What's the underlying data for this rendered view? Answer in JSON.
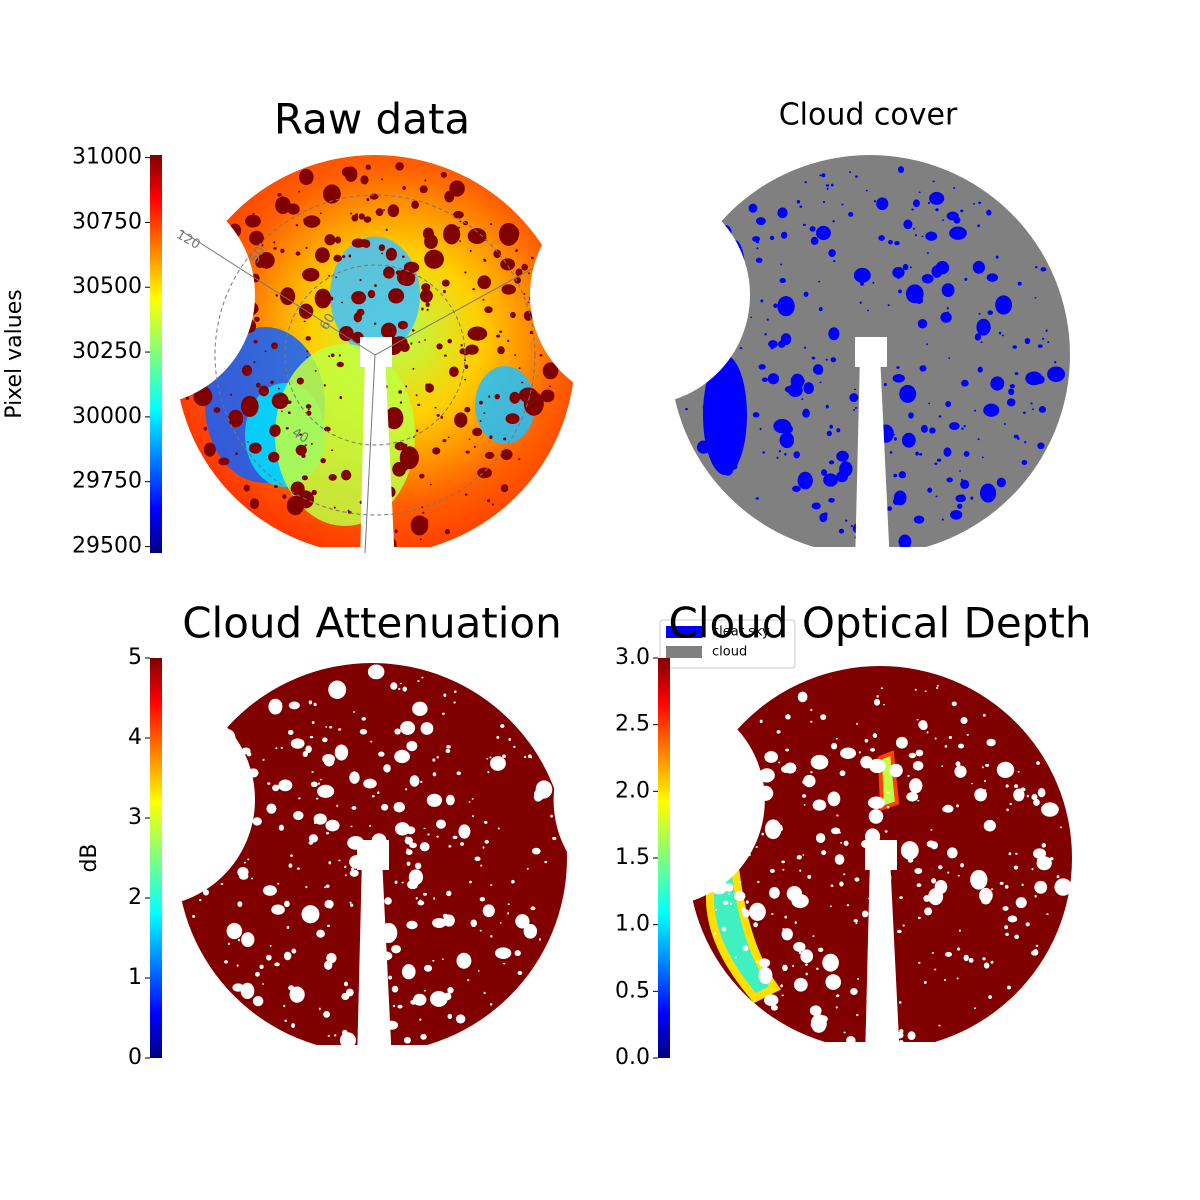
{
  "chart_data": [
    {
      "type": "sky-image",
      "title": "Raw data",
      "colormap": "jet",
      "colorbar": {
        "label": "Pixel values",
        "ylim": [
          29475,
          31010
        ],
        "yticks": [
          29500,
          29750,
          30000,
          30250,
          30500,
          30750,
          31000
        ]
      },
      "annotations": [
        "120",
        "50",
        "60",
        "40"
      ]
    },
    {
      "type": "sky-mask",
      "title": "Cloud cover",
      "series": [
        {
          "name": "clear sky",
          "color": "#0000ff"
        },
        {
          "name": "cloud",
          "color": "#808080"
        }
      ]
    },
    {
      "type": "sky-attenuation",
      "title": "Cloud Attenuation",
      "colormap": "jet",
      "colorbar": {
        "label": "dB",
        "ylim": [
          0,
          5
        ],
        "yticks": [
          0,
          1,
          2,
          3,
          4,
          5
        ]
      }
    },
    {
      "type": "sky-depth",
      "title": "Cloud Optical Depth",
      "colormap": "jet",
      "colorbar": {
        "ylim": [
          0,
          3
        ],
        "yticks": [
          {
            "value": 0,
            "label": "0.0"
          },
          {
            "value": 0.5,
            "label": "0.5"
          },
          {
            "value": 1,
            "label": "1.0"
          },
          {
            "value": 1.5,
            "label": "1.5"
          },
          {
            "value": 2,
            "label": "2.0"
          },
          {
            "value": 2.5,
            "label": "2.5"
          },
          {
            "value": 3,
            "label": "3.0"
          }
        ]
      }
    }
  ]
}
